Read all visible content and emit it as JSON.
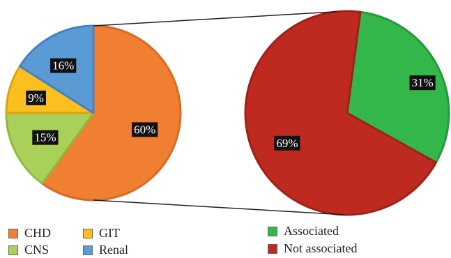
{
  "chart_data": [
    {
      "type": "pie",
      "slices": [
        {
          "label": "CHD",
          "value": 60,
          "display": "60%",
          "color": "#F07F32",
          "edge": "#D86A22"
        },
        {
          "label": "CNS",
          "value": 15,
          "display": "15%",
          "color": "#A9D15A",
          "edge": "#8DBA3E"
        },
        {
          "label": "GIT",
          "value": 9,
          "display": "9%",
          "color": "#FBBF20",
          "edge": "#DDA30E"
        },
        {
          "label": "Renal",
          "value": 16,
          "display": "16%",
          "color": "#5B9BD5",
          "edge": "#4583C0"
        }
      ],
      "start": "12 o'clock",
      "direction": "clockwise"
    },
    {
      "type": "pie",
      "slices": [
        {
          "label": "Associated",
          "value": 31,
          "display": "31%",
          "color": "#33B64A",
          "edge": "#239B39"
        },
        {
          "label": "Not associated",
          "value": 69,
          "display": "69%",
          "color": "#BE2A1F",
          "edge": "#A0201A"
        }
      ],
      "exploded_from": "Renal"
    }
  ],
  "legend": {
    "left": [
      {
        "label": "CHD",
        "color": "#F07F32"
      },
      {
        "label": "GIT",
        "color": "#FBBF20"
      },
      {
        "label": "CNS",
        "color": "#A9D15A"
      },
      {
        "label": "Renal",
        "color": "#5B9BD5"
      }
    ],
    "right": [
      {
        "label": "Associated",
        "color": "#33B64A"
      },
      {
        "label": "Not associated",
        "color": "#BE2A1F"
      }
    ]
  }
}
